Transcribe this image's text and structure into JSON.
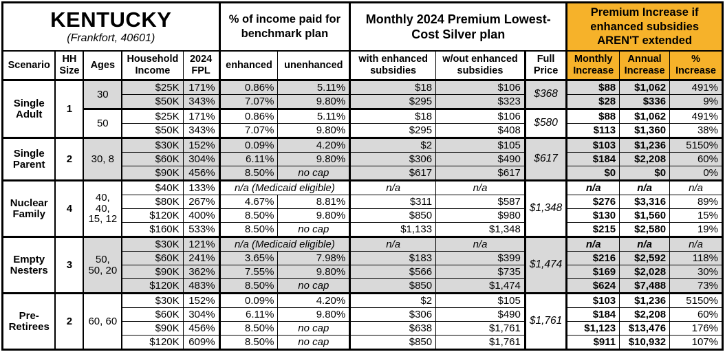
{
  "title": {
    "state": "KENTUCKY",
    "subtitle": "(Frankfort, 40601)"
  },
  "spans": {
    "income_pct": "% of income paid for benchmark plan",
    "monthly_premium": "Monthly 2024 Premium Lowest-Cost Silver plan",
    "premium_increase": "Premium Increase if enhanced subsidies AREN'T extended"
  },
  "columns": {
    "scenario": "Scenario",
    "hh_size": "HH Size",
    "ages": "Ages",
    "household_income": "Household Income",
    "fpl_2024": "2024 FPL",
    "enhanced": "enhanced",
    "unenhanced": "unenhanced",
    "with_enhanced": "with enhanced subsidies",
    "without_enhanced": "w/out enhanced subsidies",
    "full_price": "Full Price",
    "monthly_increase": "Monthly Increase",
    "annual_increase": "Annual Increase",
    "pct_increase": "% Increase"
  },
  "colors": {
    "accent_orange": "#F6B22A",
    "row_shade": "#D9D9D9"
  },
  "groups": [
    {
      "scenario": "Single Adult",
      "hh_size": "1",
      "age_cells": [
        {
          "label": "30",
          "span": 2,
          "shaded": true
        },
        {
          "label": "50",
          "span": 2,
          "shaded": false
        }
      ],
      "full_price_cells": [
        {
          "value": "$368",
          "span": 2,
          "shaded": true
        },
        {
          "value": "$580",
          "span": 2,
          "shaded": false
        }
      ],
      "rows": [
        {
          "shaded": true,
          "income": "$25K",
          "fpl": "171%",
          "enhanced": "0.86%",
          "unenhanced": "5.11%",
          "with_sub": "$18",
          "without_sub": "$106",
          "monthly": "$88",
          "annual": "$1,062",
          "pct": "491%"
        },
        {
          "shaded": true,
          "income": "$50K",
          "fpl": "343%",
          "enhanced": "7.07%",
          "unenhanced": "9.80%",
          "with_sub": "$295",
          "without_sub": "$323",
          "monthly": "$28",
          "annual": "$336",
          "pct": "9%"
        },
        {
          "shaded": false,
          "income": "$25K",
          "fpl": "171%",
          "enhanced": "0.86%",
          "unenhanced": "5.11%",
          "with_sub": "$18",
          "without_sub": "$106",
          "monthly": "$88",
          "annual": "$1,062",
          "pct": "491%"
        },
        {
          "shaded": false,
          "income": "$50K",
          "fpl": "343%",
          "enhanced": "7.07%",
          "unenhanced": "9.80%",
          "with_sub": "$295",
          "without_sub": "$408",
          "monthly": "$113",
          "annual": "$1,360",
          "pct": "38%"
        }
      ]
    },
    {
      "scenario": "Single Parent",
      "hh_size": "2",
      "age_cells": [
        {
          "label": "30, 8",
          "span": 3,
          "shaded": true
        }
      ],
      "full_price_cells": [
        {
          "value": "$617",
          "span": 3,
          "shaded": true
        }
      ],
      "rows": [
        {
          "shaded": true,
          "income": "$30K",
          "fpl": "152%",
          "enhanced": "0.09%",
          "unenhanced": "4.20%",
          "with_sub": "$2",
          "without_sub": "$105",
          "monthly": "$103",
          "annual": "$1,236",
          "pct": "5150%"
        },
        {
          "shaded": true,
          "income": "$60K",
          "fpl": "304%",
          "enhanced": "6.11%",
          "unenhanced": "9.80%",
          "with_sub": "$306",
          "without_sub": "$490",
          "monthly": "$184",
          "annual": "$2,208",
          "pct": "60%"
        },
        {
          "shaded": true,
          "income": "$90K",
          "fpl": "456%",
          "enhanced": "8.50%",
          "unenhanced": "no cap",
          "with_sub": "$617",
          "without_sub": "$617",
          "monthly": "$0",
          "annual": "$0",
          "pct": "0%"
        }
      ]
    },
    {
      "scenario": "Nuclear Family",
      "hh_size": "4",
      "age_cells": [
        {
          "label": "40, 40, 15, 12",
          "span": 4,
          "shaded": false
        }
      ],
      "full_price_cells": [
        {
          "value": "$1,348",
          "span": 4,
          "shaded": false
        }
      ],
      "rows": [
        {
          "shaded": false,
          "income": "$40K",
          "fpl": "133%",
          "medicaid": "n/a (Medicaid eligible)",
          "with_sub": "n/a",
          "without_sub": "n/a",
          "monthly": "n/a",
          "annual": "n/a",
          "pct": "n/a"
        },
        {
          "shaded": false,
          "income": "$80K",
          "fpl": "267%",
          "enhanced": "4.67%",
          "unenhanced": "8.81%",
          "with_sub": "$311",
          "without_sub": "$587",
          "monthly": "$276",
          "annual": "$3,316",
          "pct": "89%"
        },
        {
          "shaded": false,
          "income": "$120K",
          "fpl": "400%",
          "enhanced": "8.50%",
          "unenhanced": "9.80%",
          "with_sub": "$850",
          "without_sub": "$980",
          "monthly": "$130",
          "annual": "$1,560",
          "pct": "15%"
        },
        {
          "shaded": false,
          "income": "$160K",
          "fpl": "533%",
          "enhanced": "8.50%",
          "unenhanced": "no cap",
          "with_sub": "$1,133",
          "without_sub": "$1,348",
          "monthly": "$215",
          "annual": "$2,580",
          "pct": "19%"
        }
      ]
    },
    {
      "scenario": "Empty Nesters",
      "hh_size": "3",
      "age_cells": [
        {
          "label": "50, 50, 20",
          "span": 4,
          "shaded": true
        }
      ],
      "full_price_cells": [
        {
          "value": "$1,474",
          "span": 4,
          "shaded": true
        }
      ],
      "rows": [
        {
          "shaded": true,
          "income": "$30K",
          "fpl": "121%",
          "medicaid": "n/a (Medicaid eligible)",
          "with_sub": "n/a",
          "without_sub": "n/a",
          "monthly": "n/a",
          "annual": "n/a",
          "pct": "n/a"
        },
        {
          "shaded": true,
          "income": "$60K",
          "fpl": "241%",
          "enhanced": "3.65%",
          "unenhanced": "7.98%",
          "with_sub": "$183",
          "without_sub": "$399",
          "monthly": "$216",
          "annual": "$2,592",
          "pct": "118%"
        },
        {
          "shaded": true,
          "income": "$90K",
          "fpl": "362%",
          "enhanced": "7.55%",
          "unenhanced": "9.80%",
          "with_sub": "$566",
          "without_sub": "$735",
          "monthly": "$169",
          "annual": "$2,028",
          "pct": "30%"
        },
        {
          "shaded": true,
          "income": "$120K",
          "fpl": "483%",
          "enhanced": "8.50%",
          "unenhanced": "no cap",
          "with_sub": "$850",
          "without_sub": "$1,474",
          "monthly": "$624",
          "annual": "$7,488",
          "pct": "73%"
        }
      ]
    },
    {
      "scenario": "Pre-Retirees",
      "hh_size": "2",
      "age_cells": [
        {
          "label": "60, 60",
          "span": 4,
          "shaded": false
        }
      ],
      "full_price_cells": [
        {
          "value": "$1,761",
          "span": 4,
          "shaded": false
        }
      ],
      "rows": [
        {
          "shaded": false,
          "income": "$30K",
          "fpl": "152%",
          "enhanced": "0.09%",
          "unenhanced": "4.20%",
          "with_sub": "$2",
          "without_sub": "$105",
          "monthly": "$103",
          "annual": "$1,236",
          "pct": "5150%"
        },
        {
          "shaded": false,
          "income": "$60K",
          "fpl": "304%",
          "enhanced": "6.11%",
          "unenhanced": "9.80%",
          "with_sub": "$306",
          "without_sub": "$490",
          "monthly": "$184",
          "annual": "$2,208",
          "pct": "60%"
        },
        {
          "shaded": false,
          "income": "$90K",
          "fpl": "456%",
          "enhanced": "8.50%",
          "unenhanced": "no cap",
          "with_sub": "$638",
          "without_sub": "$1,761",
          "monthly": "$1,123",
          "annual": "$13,476",
          "pct": "176%"
        },
        {
          "shaded": false,
          "income": "$120K",
          "fpl": "609%",
          "enhanced": "8.50%",
          "unenhanced": "no cap",
          "with_sub": "$850",
          "without_sub": "$1,761",
          "monthly": "$911",
          "annual": "$10,932",
          "pct": "107%"
        }
      ]
    }
  ]
}
